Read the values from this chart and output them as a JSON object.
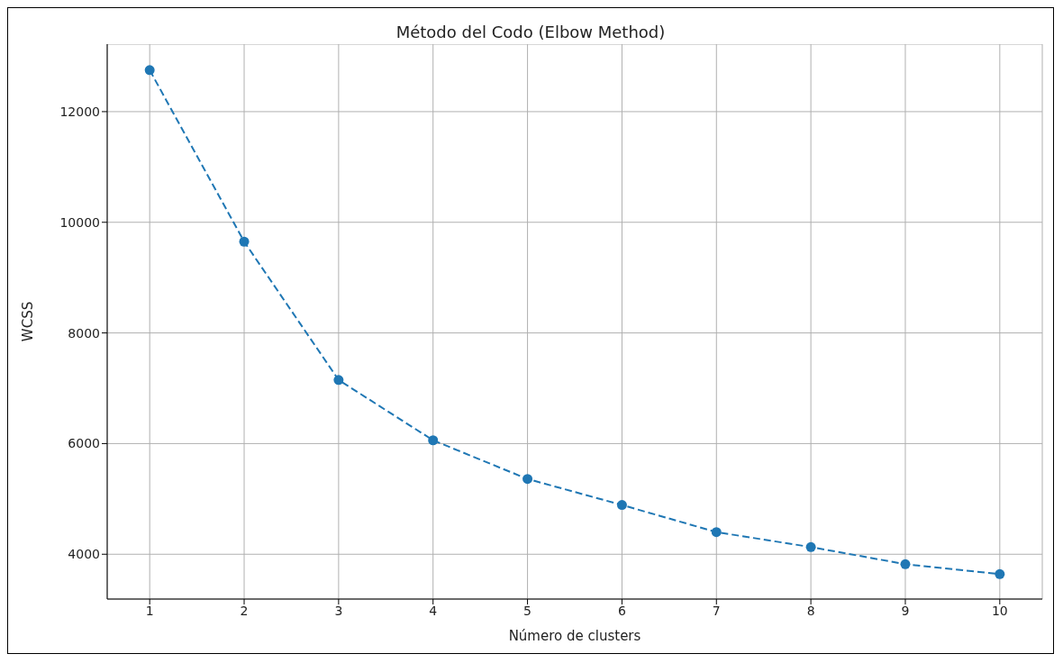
{
  "chart_data": {
    "type": "line",
    "title": "Método del Codo (Elbow Method)",
    "xlabel": "Número de clusters",
    "ylabel": "WCSS",
    "x": [
      1,
      2,
      3,
      4,
      5,
      6,
      7,
      8,
      9,
      10
    ],
    "series": [
      {
        "color": "#1f77b4",
        "values": [
          12750,
          9650,
          7150,
          6060,
          5360,
          4890,
          4400,
          4130,
          3820,
          3640
        ]
      }
    ],
    "xlim": [
      0.55,
      10.45
    ],
    "xticks": [
      1,
      2,
      3,
      4,
      5,
      6,
      7,
      8,
      9,
      10
    ],
    "ylim": [
      3190,
      13220
    ],
    "yticks": [
      4000,
      6000,
      8000,
      10000,
      12000
    ],
    "grid": true,
    "marker": "circle",
    "line_style": "dashed"
  }
}
